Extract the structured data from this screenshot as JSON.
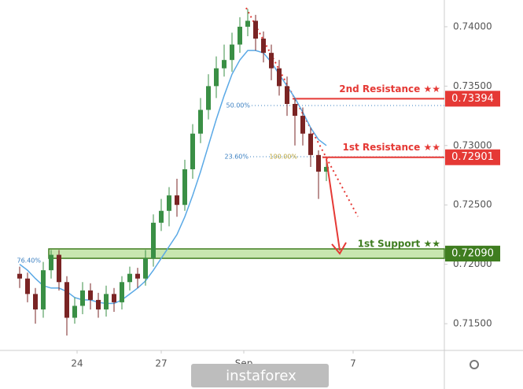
{
  "chart_data": {
    "type": "candlestick",
    "x": [
      0,
      1,
      2,
      3,
      4,
      5,
      6,
      7,
      8,
      9,
      10,
      11,
      12,
      13,
      14,
      15,
      16,
      17,
      18,
      19,
      20,
      21,
      22,
      23,
      24,
      25,
      26,
      27,
      28,
      29,
      30,
      31,
      32,
      33,
      34,
      35,
      36,
      37,
      38,
      39
    ],
    "open": [
      0.7192,
      0.7188,
      0.7175,
      0.7162,
      0.7195,
      0.7208,
      0.7185,
      0.7155,
      0.7165,
      0.7178,
      0.717,
      0.7162,
      0.7175,
      0.7168,
      0.7185,
      0.7192,
      0.7188,
      0.7205,
      0.7235,
      0.7245,
      0.7258,
      0.725,
      0.728,
      0.731,
      0.733,
      0.735,
      0.7365,
      0.7372,
      0.7385,
      0.74,
      0.7405,
      0.739,
      0.7378,
      0.7365,
      0.735,
      0.7335,
      0.7325,
      0.731,
      0.7292,
      0.7278
    ],
    "high": [
      0.7198,
      0.7193,
      0.718,
      0.7202,
      0.7212,
      0.7212,
      0.719,
      0.7172,
      0.7185,
      0.7184,
      0.7176,
      0.7182,
      0.718,
      0.719,
      0.7198,
      0.7197,
      0.7212,
      0.7242,
      0.7255,
      0.7265,
      0.7272,
      0.7288,
      0.7318,
      0.734,
      0.736,
      0.7375,
      0.7385,
      0.7395,
      0.7408,
      0.7415,
      0.741,
      0.7396,
      0.7385,
      0.7372,
      0.7358,
      0.734,
      0.7332,
      0.7315,
      0.7296,
      0.7288
    ],
    "low": [
      0.718,
      0.7168,
      0.715,
      0.7155,
      0.7188,
      0.7178,
      0.714,
      0.715,
      0.7158,
      0.7162,
      0.7155,
      0.7156,
      0.716,
      0.7162,
      0.7178,
      0.718,
      0.7182,
      0.7198,
      0.7228,
      0.7232,
      0.724,
      0.7245,
      0.7272,
      0.7302,
      0.7322,
      0.734,
      0.7358,
      0.7362,
      0.7378,
      0.7392,
      0.738,
      0.737,
      0.7355,
      0.7342,
      0.7325,
      0.73,
      0.73,
      0.7282,
      0.7255,
      0.727
    ],
    "close": [
      0.7188,
      0.7175,
      0.7162,
      0.7195,
      0.7208,
      0.7185,
      0.7155,
      0.7165,
      0.7178,
      0.717,
      0.7162,
      0.7175,
      0.7168,
      0.7185,
      0.7192,
      0.7188,
      0.7205,
      0.7235,
      0.7245,
      0.7258,
      0.725,
      0.728,
      0.731,
      0.733,
      0.735,
      0.7365,
      0.7372,
      0.7385,
      0.74,
      0.7405,
      0.739,
      0.7378,
      0.7365,
      0.735,
      0.7335,
      0.7325,
      0.731,
      0.7292,
      0.7278,
      0.7282
    ],
    "up_color": "#3a8f45",
    "down_color": "#7a2424",
    "moving_average": {
      "color": "#5aa9e6",
      "values": [
        0.72,
        0.7195,
        0.7188,
        0.7182,
        0.718,
        0.718,
        0.7177,
        0.7172,
        0.717,
        0.717,
        0.7168,
        0.7167,
        0.7167,
        0.717,
        0.7175,
        0.718,
        0.7186,
        0.7195,
        0.7205,
        0.7215,
        0.7225,
        0.724,
        0.7258,
        0.7278,
        0.73,
        0.7322,
        0.7342,
        0.736,
        0.7372,
        0.738,
        0.738,
        0.7378,
        0.737,
        0.736,
        0.735,
        0.734,
        0.7328,
        0.7315,
        0.7305,
        0.73
      ]
    },
    "xlim": [
      -2.5,
      54
    ],
    "xticks": [
      {
        "value": 7.3,
        "label": "24"
      },
      {
        "value": 18,
        "label": "27"
      },
      {
        "value": 28.5,
        "label": "Sep"
      },
      {
        "value": 42.4,
        "label": "7"
      }
    ],
    "ylim": [
      0.71275,
      0.74225
    ],
    "yticks": [
      {
        "value": 0.715,
        "label": "0.71500"
      },
      {
        "value": 0.72,
        "label": "0.72000"
      },
      {
        "value": 0.725,
        "label": "0.72500"
      },
      {
        "value": 0.73,
        "label": "0.73000"
      },
      {
        "value": 0.735,
        "label": "0.73500"
      },
      {
        "value": 0.74,
        "label": "0.74000"
      }
    ],
    "levels": [
      {
        "name": "2nd Resistance ★★",
        "value": 0.73394,
        "value_label": "0.73394",
        "color": "#e53935"
      },
      {
        "name": "1st Resistance ★★",
        "value": 0.72901,
        "value_label": "0.72901",
        "color": "#e53935"
      },
      {
        "name": "1st Support ★★",
        "value": 0.7209,
        "value_label": "0.72090",
        "color": "#3f7d20"
      }
    ],
    "fibonacci": [
      {
        "label": "50.00%",
        "value": 0.73337
      },
      {
        "label": "23.60%",
        "value": 0.72906
      },
      {
        "label": "100.00%",
        "value": 0.72906
      },
      {
        "label": "76.40%",
        "value": 0.7203
      }
    ],
    "watermark": "instaforex"
  }
}
